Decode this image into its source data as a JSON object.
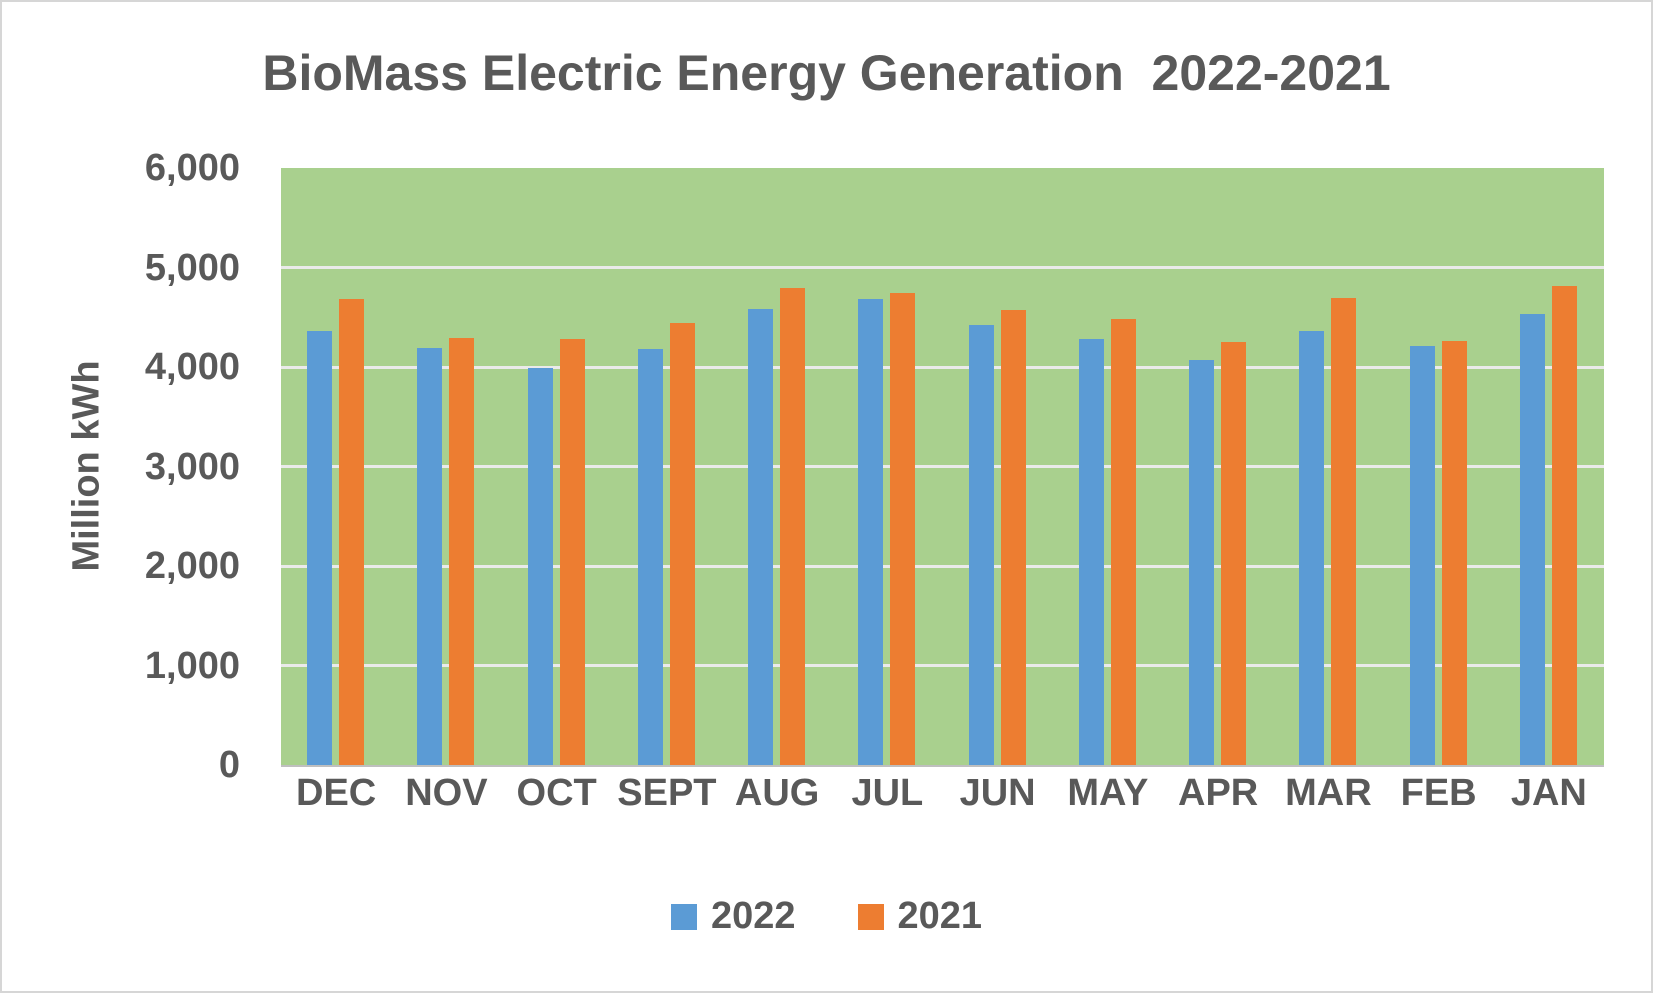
{
  "frame": {
    "background_color": "#ffffff",
    "border_color": "#d6d6d6",
    "text_color": "#595959"
  },
  "chart": {
    "plot_background_color": "#a9d08e",
    "gridline_color": "#eaeaea",
    "axis_line_color": "#bfbfbf"
  },
  "chart_data": {
    "type": "bar",
    "title": "BioMass Electric Energy Generation  2022-2021",
    "xlabel": "",
    "ylabel": "Million kWh",
    "ylim": [
      0,
      6000
    ],
    "ytick_step": 1000,
    "ytick_labels": [
      "0",
      "1,000",
      "2,000",
      "3,000",
      "4,000",
      "5,000",
      "6,000"
    ],
    "grid": "horizontal",
    "legend_position": "bottom",
    "categories": [
      "DEC",
      "NOV",
      "OCT",
      "SEPT",
      "AUG",
      "JUL",
      "JUN",
      "MAY",
      "APR",
      "MAR",
      "FEB",
      "JAN"
    ],
    "series": [
      {
        "name": "2022",
        "color": "#5b9bd5",
        "values": [
          4360,
          4190,
          3990,
          4180,
          4580,
          4680,
          4420,
          4280,
          4070,
          4360,
          4210,
          4530
        ]
      },
      {
        "name": "2021",
        "color": "#ed7d31",
        "values": [
          4680,
          4290,
          4280,
          4440,
          4790,
          4740,
          4570,
          4480,
          4250,
          4690,
          4260,
          4810
        ]
      }
    ]
  }
}
